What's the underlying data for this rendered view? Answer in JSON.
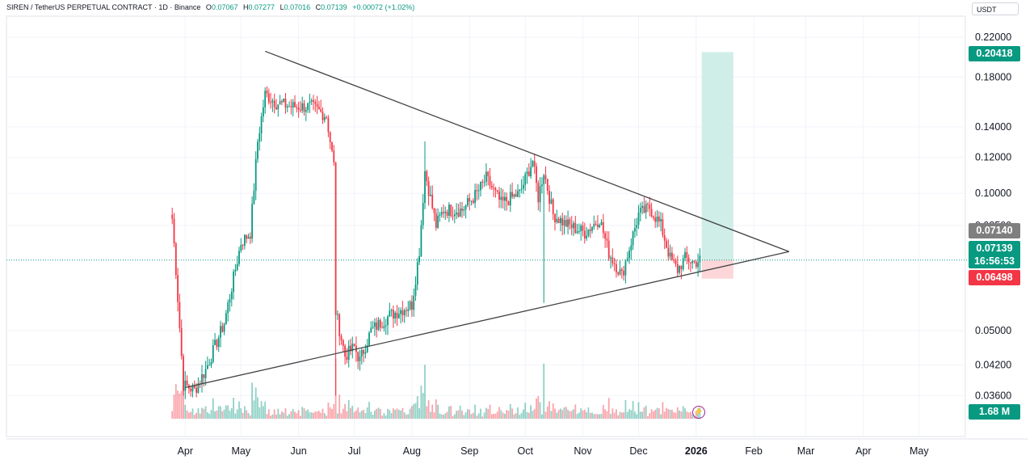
{
  "header": {
    "symbol": "SIREN / TetherUS PERPETUAL CONTRACT · 1D · Binance",
    "open_label": "O",
    "open": "0.07067",
    "high_label": "H",
    "high": "0.07277",
    "low_label": "L",
    "low": "0.07016",
    "close_label": "C",
    "close": "0.07139",
    "change": "+0.00072 (+1.02%)"
  },
  "unit": "USDT",
  "price_tags": {
    "target": "0.20418",
    "entry": "0.07140",
    "last": "0.07139",
    "countdown": "16:56:53",
    "stop": "0.06498",
    "volume": "1.68 M"
  },
  "colors": {
    "up": "#089981",
    "down": "#f23645",
    "profit_zone": "#cfeee8",
    "loss_zone": "#fcd6d9",
    "trendline": "#444444",
    "grid": "#f0f3fa",
    "bolt": "#a020a0"
  },
  "icons": {
    "alert": "lightning-bolt-icon"
  },
  "chart_data": {
    "type": "candlestick",
    "symbol": "SIREN/USDT",
    "timeframe": "1D",
    "yscale": "log",
    "ylim": [
      0.0335,
      0.235
    ],
    "yticks": [
      "0.22000",
      "0.18000",
      "0.14000",
      "0.12000",
      "0.10000",
      "0.08500",
      "0.05000",
      "0.04200",
      "0.03600"
    ],
    "xticks": [
      "Apr",
      "May",
      "Jun",
      "Jul",
      "Aug",
      "Sep",
      "Oct",
      "Nov",
      "Dec",
      "2026",
      "Feb",
      "Mar",
      "Apr",
      "May"
    ],
    "bold_xtick": "2026",
    "price_anchors": [
      [
        "2025-03-25",
        0.088
      ],
      [
        "2025-03-27",
        0.068
      ],
      [
        "2025-03-31",
        0.038
      ],
      [
        "2025-04-06",
        0.037
      ],
      [
        "2025-04-12",
        0.041
      ],
      [
        "2025-04-22",
        0.052
      ],
      [
        "2025-05-01",
        0.078
      ],
      [
        "2025-05-06",
        0.082
      ],
      [
        "2025-05-10",
        0.13
      ],
      [
        "2025-05-14",
        0.165
      ],
      [
        "2025-05-20",
        0.158
      ],
      [
        "2025-05-28",
        0.155
      ],
      [
        "2025-06-08",
        0.155
      ],
      [
        "2025-06-16",
        0.148
      ],
      [
        "2025-06-20",
        0.115
      ],
      [
        "2025-06-21",
        0.055
      ],
      [
        "2025-06-26",
        0.044
      ],
      [
        "2025-07-01",
        0.046
      ],
      [
        "2025-07-04",
        0.043
      ],
      [
        "2025-07-10",
        0.05
      ],
      [
        "2025-07-20",
        0.054
      ],
      [
        "2025-08-01",
        0.057
      ],
      [
        "2025-08-05",
        0.075
      ],
      [
        "2025-08-08",
        0.112
      ],
      [
        "2025-08-14",
        0.085
      ],
      [
        "2025-08-18",
        0.092
      ],
      [
        "2025-08-28",
        0.092
      ],
      [
        "2025-09-05",
        0.1
      ],
      [
        "2025-09-10",
        0.108
      ],
      [
        "2025-09-18",
        0.095
      ],
      [
        "2025-09-28",
        0.1
      ],
      [
        "2025-10-05",
        0.118
      ],
      [
        "2025-10-08",
        0.098
      ],
      [
        "2025-10-11",
        0.112
      ],
      [
        "2025-10-16",
        0.09
      ],
      [
        "2025-10-22",
        0.086
      ],
      [
        "2025-11-02",
        0.082
      ],
      [
        "2025-11-10",
        0.088
      ],
      [
        "2025-11-15",
        0.074
      ],
      [
        "2025-11-22",
        0.066
      ],
      [
        "2025-12-01",
        0.09
      ],
      [
        "2025-12-07",
        0.093
      ],
      [
        "2025-12-13",
        0.085
      ],
      [
        "2025-12-18",
        0.072
      ],
      [
        "2025-12-22",
        0.068
      ],
      [
        "2025-12-26",
        0.072
      ],
      [
        "2025-12-31",
        0.0705
      ],
      [
        "2026-01-03",
        0.07139
      ]
    ],
    "spikes": [
      {
        "date": "2025-06-21",
        "low": 0.036
      },
      {
        "date": "2025-10-11",
        "low": 0.0575
      },
      {
        "date": "2025-03-31",
        "low": 0.036
      },
      {
        "date": "2025-08-08",
        "high": 0.13
      }
    ],
    "trendlines": [
      {
        "name": "upper",
        "from": [
          "2025-05-14",
          0.205
        ],
        "to": [
          "2026-02-20",
          0.0745
        ]
      },
      {
        "name": "lower",
        "from": [
          "2025-04-01",
          0.0375
        ],
        "to": [
          "2026-02-20",
          0.0745
        ]
      }
    ],
    "position": {
      "type": "long",
      "entry": 0.0714,
      "target": 0.20418,
      "stop": 0.06498,
      "from": "2026-01-04",
      "to": "2026-01-21"
    },
    "last_price": 0.07139,
    "volume_last": "1.68 M"
  }
}
